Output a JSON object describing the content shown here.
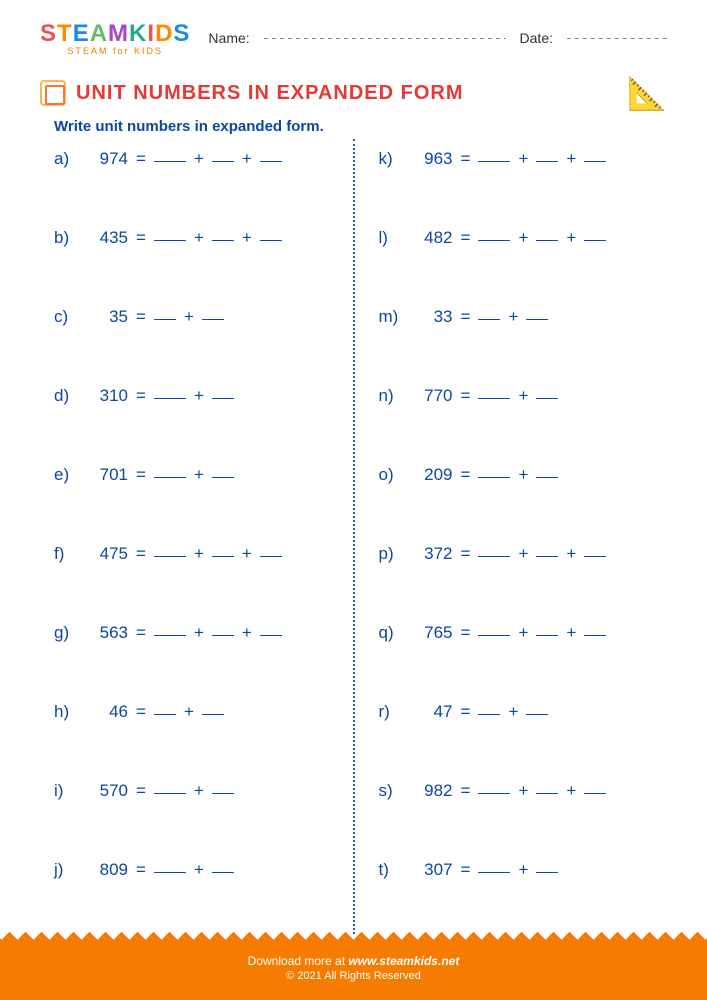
{
  "logo": {
    "letters": [
      {
        "ch": "S",
        "color": "#ef5350"
      },
      {
        "ch": "T",
        "color": "#fb8c00"
      },
      {
        "ch": "E",
        "color": "#1e88e5"
      },
      {
        "ch": "A",
        "color": "#66bb6a"
      },
      {
        "ch": "M",
        "color": "#ab47bc"
      },
      {
        "ch": " ",
        "color": "#000"
      },
      {
        "ch": "K",
        "color": "#26a69a"
      },
      {
        "ch": "I",
        "color": "#ef5350"
      },
      {
        "ch": "D",
        "color": "#fb8c00"
      },
      {
        "ch": "S",
        "color": "#1e88e5"
      }
    ],
    "subtitle": "STEAM for KIDS"
  },
  "fields": {
    "name_label": "Name:",
    "date_label": "Date:"
  },
  "title": "UNIT NUMBERS IN EXPANDED FORM",
  "instruction": "Write unit numbers in expanded form.",
  "tools_glyph": "📐",
  "problems_left": [
    {
      "label": "a)",
      "num": "974",
      "blanks": 3
    },
    {
      "label": "b)",
      "num": "435",
      "blanks": 3
    },
    {
      "label": "c)",
      "num": "35",
      "blanks": 2
    },
    {
      "label": "d)",
      "num": "310",
      "blanks": 2
    },
    {
      "label": "e)",
      "num": "701",
      "blanks": 2
    },
    {
      "label": "f)",
      "num": "475",
      "blanks": 3
    },
    {
      "label": "g)",
      "num": "563",
      "blanks": 3
    },
    {
      "label": "h)",
      "num": "46",
      "blanks": 2
    },
    {
      "label": "i)",
      "num": "570",
      "blanks": 2
    },
    {
      "label": "j)",
      "num": "809",
      "blanks": 2
    }
  ],
  "problems_right": [
    {
      "label": "k)",
      "num": "963",
      "blanks": 3
    },
    {
      "label": "l)",
      "num": "482",
      "blanks": 3
    },
    {
      "label": "m)",
      "num": "33",
      "blanks": 2
    },
    {
      "label": "n)",
      "num": "770",
      "blanks": 2
    },
    {
      "label": "o)",
      "num": "209",
      "blanks": 2
    },
    {
      "label": "p)",
      "num": "372",
      "blanks": 3
    },
    {
      "label": "q)",
      "num": "765",
      "blanks": 3
    },
    {
      "label": "r)",
      "num": "47",
      "blanks": 2
    },
    {
      "label": "s)",
      "num": "982",
      "blanks": 3
    },
    {
      "label": "t)",
      "num": "307",
      "blanks": 2
    }
  ],
  "footer": {
    "prefix": "Download more at ",
    "site": "www.steamkids.net",
    "copyright": "© 2021 All Rights Reserved"
  },
  "colors": {
    "primary_blue": "#0d47a1",
    "title_red": "#e53935",
    "footer_orange": "#f57c00"
  }
}
